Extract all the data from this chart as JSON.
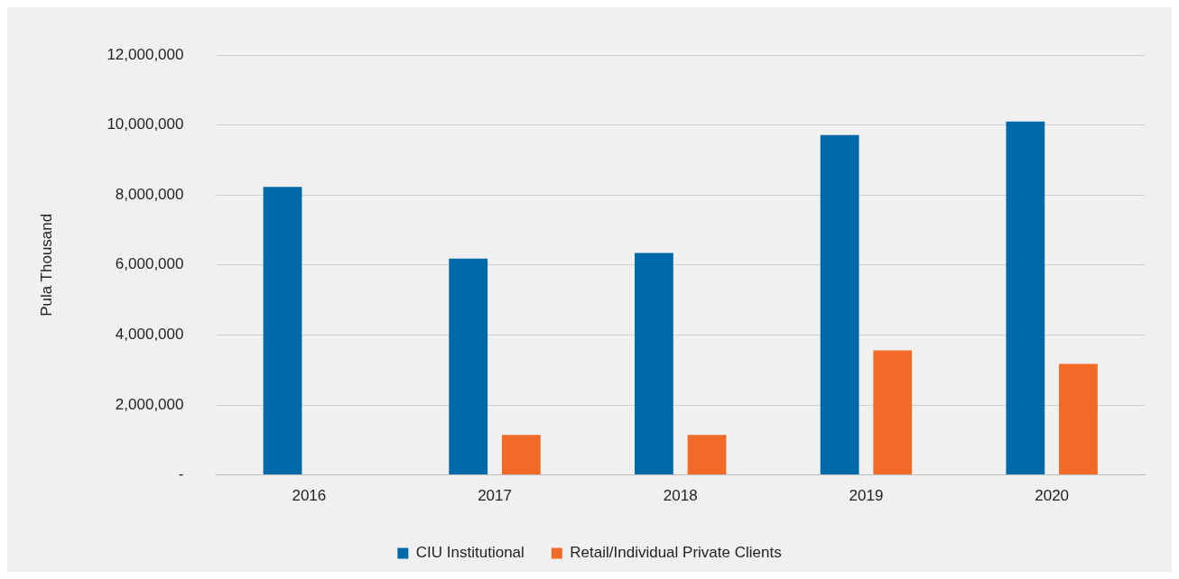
{
  "chart_data": {
    "type": "bar",
    "ylabel": "Pula Thousand",
    "categories": [
      "2016",
      "2017",
      "2018",
      "2019",
      "2020"
    ],
    "series": [
      {
        "name": "CIU Institutional",
        "color": "#006aa9",
        "values": [
          8230000,
          6180000,
          6340000,
          9710000,
          10100000
        ]
      },
      {
        "name": "Retail/Individual Private Clients",
        "color": "#f26a27",
        "values": [
          null,
          1140000,
          1140000,
          3560000,
          3170000
        ]
      }
    ],
    "ylim": [
      0,
      12000000
    ],
    "yticks": [
      {
        "value": 0,
        "label": "-"
      },
      {
        "value": 2000000,
        "label": "2,000,000"
      },
      {
        "value": 4000000,
        "label": "4,000,000"
      },
      {
        "value": 6000000,
        "label": "6,000,000"
      },
      {
        "value": 8000000,
        "label": "8,000,000"
      },
      {
        "value": 10000000,
        "label": "10,000,000"
      },
      {
        "value": 12000000,
        "label": "12,000,000"
      }
    ],
    "grid": "y",
    "legend": "bottom"
  }
}
